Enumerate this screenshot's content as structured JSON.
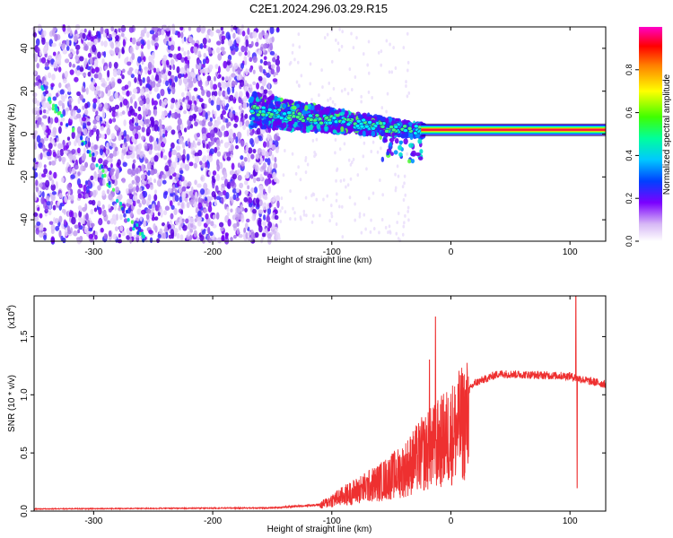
{
  "title": "C2E1.2024.296.03.29.R15",
  "chart_data": [
    {
      "type": "heatmap",
      "xlabel": "Height of straight line (km)",
      "ylabel": "Frequency (Hz)",
      "xlim": [
        -350,
        130
      ],
      "ylim": [
        -50,
        50
      ],
      "xticks": [
        -300,
        -200,
        -100,
        0,
        100
      ],
      "yticks": [
        -40,
        -20,
        0,
        20,
        40
      ],
      "colorbar": {
        "label": "Normalized spectral amplitude",
        "range": [
          0,
          1
        ],
        "ticks": [
          "0.0",
          "0.2",
          "0.4",
          "0.6",
          "0.8"
        ]
      },
      "features": {
        "noise_region_x": [
          -350,
          -145
        ],
        "dispersion_band": [
          {
            "x": -165,
            "y": 11
          },
          {
            "x": -140,
            "y": 9
          },
          {
            "x": -110,
            "y": 7
          },
          {
            "x": -80,
            "y": 5
          },
          {
            "x": -50,
            "y": 3
          },
          {
            "x": -30,
            "y": 2
          },
          {
            "x": 0,
            "y": 2
          },
          {
            "x": 130,
            "y": 2
          }
        ],
        "tone_line": {
          "x_start": -25,
          "x_end": 130,
          "y": 2
        },
        "diagonal_streak": [
          {
            "x": -350,
            "y": 25
          },
          {
            "x": -300,
            "y": -10
          },
          {
            "x": -270,
            "y": -40
          },
          {
            "x": -255,
            "y": -50
          }
        ]
      }
    },
    {
      "type": "line",
      "xlabel": "Height of straight line (km)",
      "ylabel": "SNR (10 * v/v)",
      "scale_note": "(x10",
      "scale_exp": "4",
      "xlim": [
        -350,
        130
      ],
      "ylim": [
        0,
        1.85
      ],
      "xticks": [
        -300,
        -200,
        -100,
        0,
        100
      ],
      "yticks": [
        "0.0",
        "0.5",
        "1.0",
        "1.5"
      ],
      "color": "#ee3030",
      "envelope": [
        {
          "x": -350,
          "y": 0.02
        },
        {
          "x": -150,
          "y": 0.03
        },
        {
          "x": -110,
          "y": 0.06
        },
        {
          "x": -100,
          "y": 0.12
        },
        {
          "x": -80,
          "y": 0.22
        },
        {
          "x": -60,
          "y": 0.32
        },
        {
          "x": -40,
          "y": 0.45
        },
        {
          "x": -25,
          "y": 0.62
        },
        {
          "x": -10,
          "y": 0.75
        },
        {
          "x": 0,
          "y": 0.85
        },
        {
          "x": 20,
          "y": 1.1
        },
        {
          "x": 40,
          "y": 1.18
        },
        {
          "x": 70,
          "y": 1.17
        },
        {
          "x": 100,
          "y": 1.16
        },
        {
          "x": 115,
          "y": 1.12
        },
        {
          "x": 130,
          "y": 1.09
        }
      ],
      "spikes": [
        {
          "x": -13,
          "y": 1.67
        },
        {
          "x": -18,
          "y": 1.3
        },
        {
          "x": 105,
          "y": 1.85
        },
        {
          "x": 106,
          "y": 0.2
        }
      ]
    }
  ]
}
